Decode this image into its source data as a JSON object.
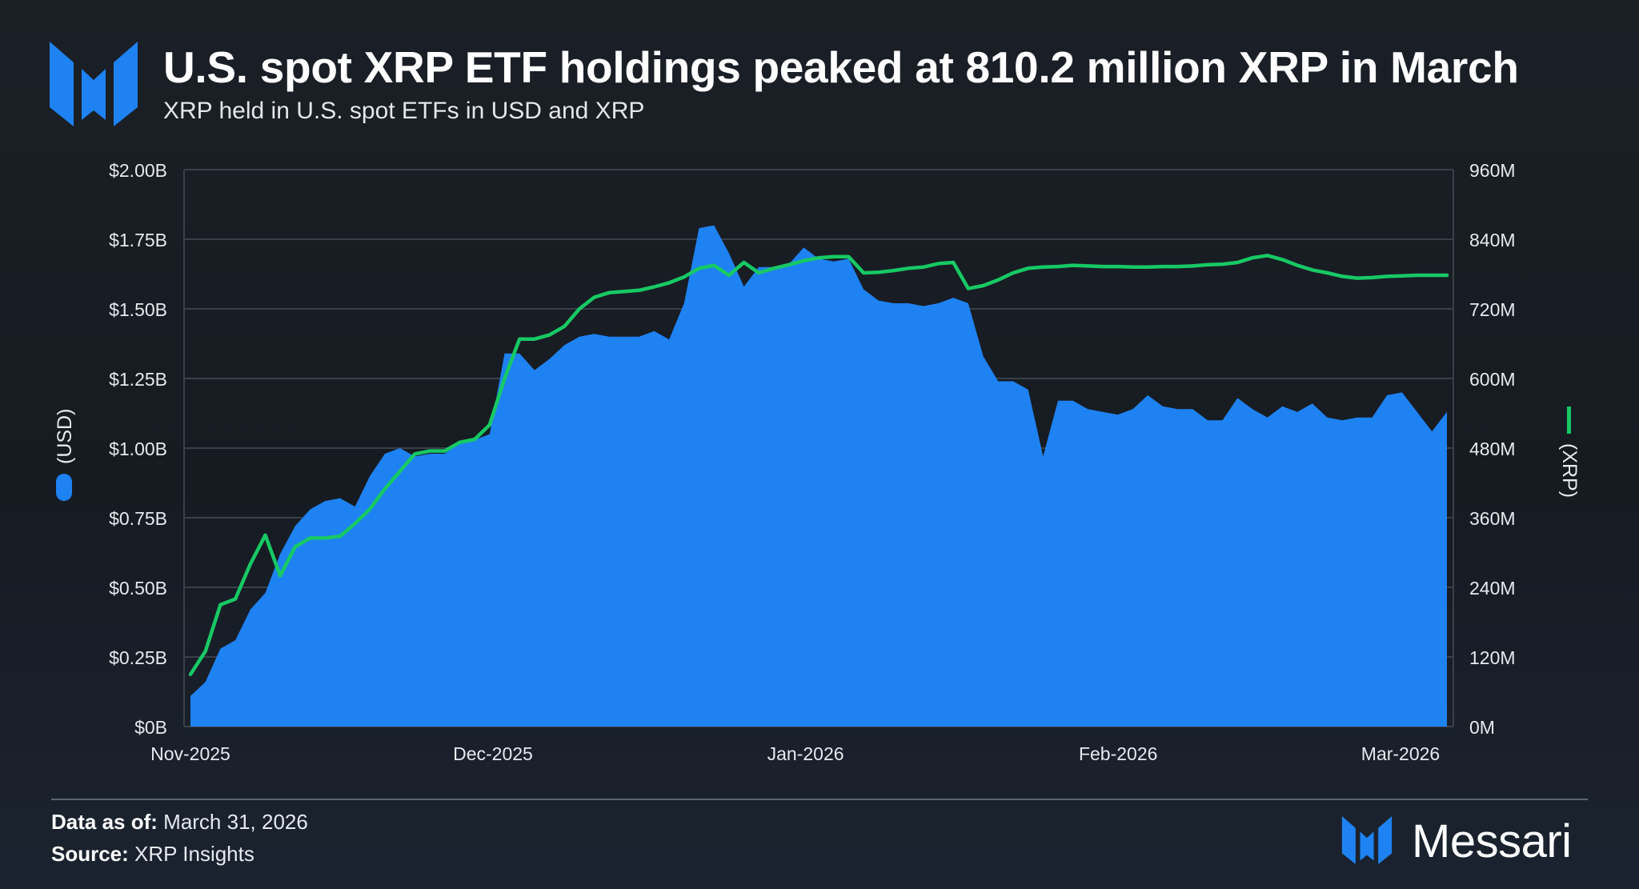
{
  "header": {
    "title": "U.S. spot XRP ETF holdings peaked at 810.2 million XRP in March",
    "subtitle": "XRP held in U.S. spot ETFs in USD and XRP"
  },
  "footer": {
    "data_as_of_label": "Data as of:",
    "data_as_of_value": "March 31, 2026",
    "source_label": "Source:",
    "source_value": "XRP Insights",
    "brand": "Messari"
  },
  "colors": {
    "area": "#1e82f2",
    "line": "#17c964",
    "grid": "#3a4048",
    "text": "#e6e9ee"
  },
  "icons": {
    "brand_logo": "messari-logo-icon"
  },
  "chart_data": {
    "type": "area",
    "x_axis": {
      "ticks": [
        {
          "label": "Nov-2025",
          "day": 0
        },
        {
          "label": "Dec-2025",
          "day": 30
        },
        {
          "label": "Jan-2026",
          "day": 61
        },
        {
          "label": "Feb-2026",
          "day": 92
        },
        {
          "label": "Mar-2026",
          "day": 120
        }
      ]
    },
    "y_left": {
      "label": "(USD)",
      "range": [
        0,
        2.0
      ],
      "ticks": [
        {
          "value": 0,
          "label": "$0B"
        },
        {
          "value": 0.25,
          "label": "$0.25B"
        },
        {
          "value": 0.5,
          "label": "$0.50B"
        },
        {
          "value": 0.75,
          "label": "$0.75B"
        },
        {
          "value": 1.0,
          "label": "$1.00B"
        },
        {
          "value": 1.25,
          "label": "$1.25B"
        },
        {
          "value": 1.5,
          "label": "$1.50B"
        },
        {
          "value": 1.75,
          "label": "$1.75B"
        },
        {
          "value": 2.0,
          "label": "$2.00B"
        }
      ]
    },
    "y_right": {
      "label": "(XRP)",
      "range": [
        0,
        960
      ],
      "ticks": [
        {
          "value": 0,
          "label": "0M"
        },
        {
          "value": 120,
          "label": "120M"
        },
        {
          "value": 240,
          "label": "240M"
        },
        {
          "value": 360,
          "label": "360M"
        },
        {
          "value": 480,
          "label": "480M"
        },
        {
          "value": 600,
          "label": "600M"
        },
        {
          "value": 720,
          "label": "720M"
        },
        {
          "value": 840,
          "label": "840M"
        },
        {
          "value": 960,
          "label": "960M"
        }
      ]
    },
    "grid": true,
    "legend": "axis-side",
    "series": [
      {
        "name": "(USD)",
        "kind": "area",
        "axis": "left",
        "points": [
          [
            0,
            0.11
          ],
          [
            1,
            0.16
          ],
          [
            2,
            0.28
          ],
          [
            3,
            0.31
          ],
          [
            4,
            0.42
          ],
          [
            5,
            0.48
          ],
          [
            6,
            0.62
          ],
          [
            7,
            0.72
          ],
          [
            8,
            0.78
          ],
          [
            9,
            0.81
          ],
          [
            10,
            0.82
          ],
          [
            11,
            0.79
          ],
          [
            12,
            0.9
          ],
          [
            13,
            0.98
          ],
          [
            14,
            1.0
          ],
          [
            15,
            0.97
          ],
          [
            16,
            0.98
          ],
          [
            17,
            0.98
          ],
          [
            18,
            1.02
          ],
          [
            19,
            1.03
          ],
          [
            20,
            1.05
          ],
          [
            21,
            1.34
          ],
          [
            22,
            1.34
          ],
          [
            23,
            1.28
          ],
          [
            24,
            1.32
          ],
          [
            25,
            1.37
          ],
          [
            26,
            1.4
          ],
          [
            27,
            1.41
          ],
          [
            28,
            1.4
          ],
          [
            29,
            1.4
          ],
          [
            30,
            1.4
          ],
          [
            31,
            1.42
          ],
          [
            32,
            1.39
          ],
          [
            33,
            1.52
          ],
          [
            34,
            1.79
          ],
          [
            35,
            1.8
          ],
          [
            36,
            1.7
          ],
          [
            37,
            1.58
          ],
          [
            38,
            1.65
          ],
          [
            39,
            1.65
          ],
          [
            40,
            1.66
          ],
          [
            41,
            1.72
          ],
          [
            42,
            1.68
          ],
          [
            43,
            1.67
          ],
          [
            44,
            1.68
          ],
          [
            45,
            1.57
          ],
          [
            46,
            1.53
          ],
          [
            47,
            1.52
          ],
          [
            48,
            1.52
          ],
          [
            49,
            1.51
          ],
          [
            50,
            1.52
          ],
          [
            51,
            1.54
          ],
          [
            52,
            1.52
          ],
          [
            53,
            1.33
          ],
          [
            54,
            1.24
          ],
          [
            55,
            1.24
          ],
          [
            56,
            1.21
          ],
          [
            57,
            0.97
          ],
          [
            58,
            1.17
          ],
          [
            59,
            1.17
          ],
          [
            60,
            1.14
          ],
          [
            61,
            1.13
          ],
          [
            62,
            1.12
          ],
          [
            63,
            1.14
          ],
          [
            64,
            1.19
          ],
          [
            65,
            1.15
          ],
          [
            66,
            1.14
          ],
          [
            67,
            1.14
          ],
          [
            68,
            1.1
          ],
          [
            69,
            1.1
          ],
          [
            70,
            1.18
          ],
          [
            71,
            1.14
          ],
          [
            72,
            1.11
          ],
          [
            73,
            1.15
          ],
          [
            74,
            1.13
          ],
          [
            75,
            1.16
          ],
          [
            76,
            1.11
          ],
          [
            77,
            1.1
          ],
          [
            78,
            1.11
          ],
          [
            79,
            1.11
          ],
          [
            80,
            1.19
          ],
          [
            81,
            1.2
          ],
          [
            82,
            1.13
          ],
          [
            83,
            1.06
          ],
          [
            84,
            1.13
          ]
        ]
      },
      {
        "name": "(XRP)",
        "kind": "line",
        "axis": "right",
        "points": [
          [
            0,
            90
          ],
          [
            1,
            130
          ],
          [
            2,
            210
          ],
          [
            3,
            220
          ],
          [
            4,
            280
          ],
          [
            5,
            330
          ],
          [
            6,
            260
          ],
          [
            7,
            310
          ],
          [
            8,
            325
          ],
          [
            9,
            325
          ],
          [
            10,
            328
          ],
          [
            11,
            350
          ],
          [
            12,
            375
          ],
          [
            13,
            410
          ],
          [
            14,
            440
          ],
          [
            15,
            470
          ],
          [
            16,
            475
          ],
          [
            17,
            475
          ],
          [
            18,
            490
          ],
          [
            19,
            495
          ],
          [
            20,
            520
          ],
          [
            21,
            600
          ],
          [
            22,
            668
          ],
          [
            23,
            668
          ],
          [
            24,
            675
          ],
          [
            25,
            690
          ],
          [
            26,
            720
          ],
          [
            27,
            740
          ],
          [
            28,
            748
          ],
          [
            29,
            750
          ],
          [
            30,
            752
          ],
          [
            31,
            758
          ],
          [
            32,
            765
          ],
          [
            33,
            775
          ],
          [
            34,
            790
          ],
          [
            35,
            795
          ],
          [
            36,
            778
          ],
          [
            37,
            800
          ],
          [
            38,
            782
          ],
          [
            39,
            790
          ],
          [
            40,
            796
          ],
          [
            41,
            803
          ],
          [
            42,
            808
          ],
          [
            43,
            810
          ],
          [
            44,
            810
          ],
          [
            45,
            782
          ],
          [
            46,
            783
          ],
          [
            47,
            786
          ],
          [
            48,
            790
          ],
          [
            49,
            792
          ],
          [
            50,
            798
          ],
          [
            51,
            800
          ],
          [
            52,
            755
          ],
          [
            53,
            760
          ],
          [
            54,
            770
          ],
          [
            55,
            782
          ],
          [
            56,
            790
          ],
          [
            57,
            792
          ],
          [
            58,
            793
          ],
          [
            59,
            795
          ],
          [
            60,
            794
          ],
          [
            61,
            793
          ],
          [
            62,
            793
          ],
          [
            63,
            792
          ],
          [
            64,
            792
          ],
          [
            65,
            793
          ],
          [
            66,
            793
          ],
          [
            67,
            794
          ],
          [
            68,
            796
          ],
          [
            69,
            797
          ],
          [
            70,
            800
          ],
          [
            71,
            808
          ],
          [
            72,
            812
          ],
          [
            73,
            805
          ],
          [
            74,
            795
          ],
          [
            75,
            787
          ],
          [
            76,
            782
          ],
          [
            77,
            776
          ],
          [
            78,
            773
          ],
          [
            79,
            774
          ],
          [
            80,
            776
          ],
          [
            81,
            777
          ],
          [
            82,
            778
          ],
          [
            83,
            778
          ],
          [
            84,
            778
          ]
        ]
      }
    ]
  }
}
